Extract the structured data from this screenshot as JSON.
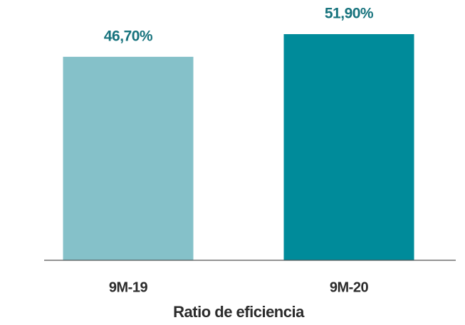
{
  "chart_data": {
    "type": "bar",
    "title": "Ratio de eficiencia",
    "categories": [
      "9M-19",
      "9M-20"
    ],
    "values": [
      46.7,
      51.9
    ],
    "value_labels": [
      "46,70%",
      "51,90%"
    ],
    "colors": [
      "#85c1c9",
      "#008b9a"
    ]
  }
}
